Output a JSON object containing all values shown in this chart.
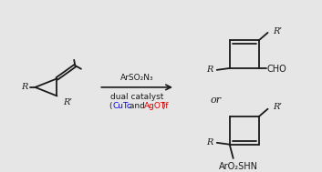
{
  "bg_color": "#e6e6e6",
  "line_color": "#1a1a1a",
  "blue_color": "#0000ee",
  "red_color": "#dd0000",
  "arrow_above": "ArSO₂N₃",
  "arrow_below1": "dual catalyst",
  "cu_text": "CuTc",
  "and_text": " and ",
  "ag_text": "AgOTf",
  "product1_sub": "CHO",
  "product2_sub": "ArO₂SHN",
  "or_text": "or",
  "R_label": "R",
  "R_prime": "R’",
  "fontsize": 7.0,
  "lw": 1.3
}
